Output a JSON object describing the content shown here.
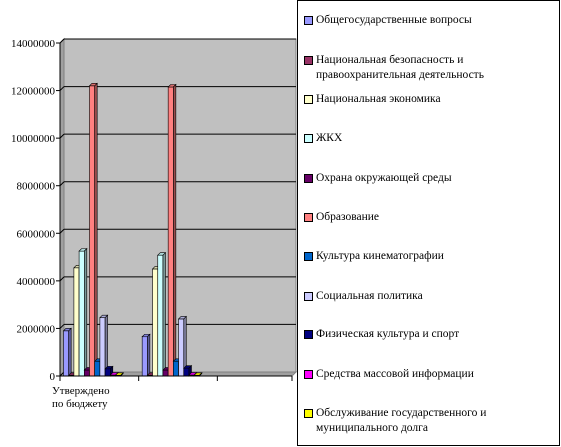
{
  "chart_data": {
    "type": "bar",
    "categories": [
      "Утверждено по бюджету",
      "",
      ""
    ],
    "category_lines": [
      [
        "Утверждено",
        "по бюджету"
      ],
      [],
      []
    ],
    "y_ticks": [
      "0",
      "2000000",
      "4000000",
      "6000000",
      "8000000",
      "10000000",
      "12000000",
      "14000000"
    ],
    "ylim": [
      0,
      14000000
    ],
    "grid": true,
    "legend_position": "right",
    "series": [
      {
        "name": "Общегосударственные вопросы",
        "color": "#9999ff",
        "values": [
          1900000,
          1650000,
          null
        ]
      },
      {
        "name": "Национальная безопасность и правоохранительная деятельность",
        "color": "#993366",
        "values": [
          30000,
          30000,
          null
        ]
      },
      {
        "name": "Национальная экономика",
        "color": "#ffffcc",
        "values": [
          4550000,
          4500000,
          null
        ]
      },
      {
        "name": "ЖКХ",
        "color": "#ccffff",
        "values": [
          5250000,
          5080000,
          null
        ]
      },
      {
        "name": "Охрана окружающей среды",
        "color": "#660066",
        "values": [
          250000,
          250000,
          null
        ]
      },
      {
        "name": "Образование",
        "color": "#ff8080",
        "values": [
          12200000,
          12150000,
          null
        ]
      },
      {
        "name": "Культура кинематографии",
        "color": "#0066cc",
        "values": [
          620000,
          620000,
          null
        ]
      },
      {
        "name": "Социальная политика",
        "color": "#ccccff",
        "values": [
          2450000,
          2400000,
          null
        ]
      },
      {
        "name": "Физическая культура и спорт",
        "color": "#000080",
        "values": [
          300000,
          330000,
          null
        ]
      },
      {
        "name": "Средства массовой информации",
        "color": "#ff00ff",
        "values": [
          40000,
          40000,
          null
        ]
      },
      {
        "name": "Обслуживание государственного и муниципального долга",
        "color": "#ffff00",
        "values": [
          30000,
          30000,
          null
        ]
      }
    ]
  }
}
